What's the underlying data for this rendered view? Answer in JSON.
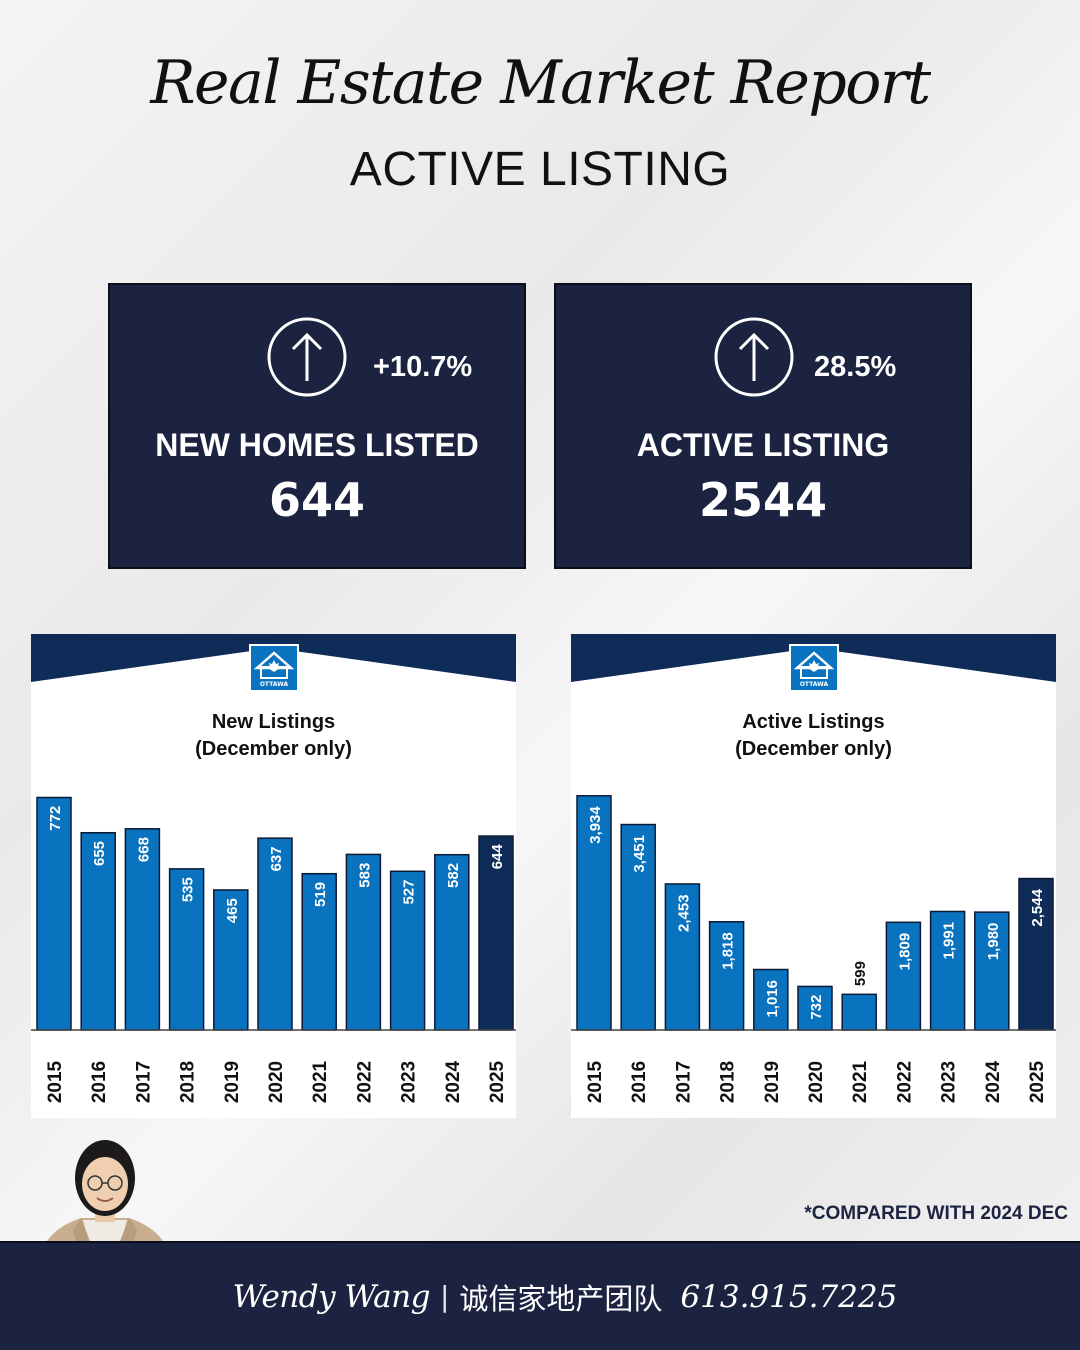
{
  "header": {
    "title": "Real Estate Market Report",
    "subtitle": "ACTIVE LISTING"
  },
  "stats": [
    {
      "change": "+10.7%",
      "label": "NEW HOMES LISTED",
      "value": "644",
      "trend_icon": "arrow-up-circle-icon"
    },
    {
      "change": "28.5%",
      "label": "ACTIVE LISTING",
      "value": "2544",
      "trend_icon": "arrow-up-circle-icon"
    }
  ],
  "colors": {
    "navy": "#1b2340",
    "bar": "#0a73bf",
    "bar_highlight": "#0f2b58",
    "banner": "#0f2b58"
  },
  "logo": {
    "icon": "ottawa-real-estate-board-logo-icon",
    "text": "OTTAWA"
  },
  "chart_data": [
    {
      "type": "bar",
      "title": "New Listings",
      "subtitle": "(December only)",
      "categories": [
        "2015",
        "2016",
        "2017",
        "2018",
        "2019",
        "2020",
        "2021",
        "2022",
        "2023",
        "2024",
        "2025"
      ],
      "values": [
        772,
        655,
        668,
        535,
        465,
        637,
        519,
        583,
        527,
        582,
        644
      ],
      "data_labels": [
        "772",
        "655",
        "668",
        "535",
        "465",
        "637",
        "519",
        "583",
        "527",
        "582",
        "644"
      ],
      "highlight_index": 10,
      "ylim": [
        0,
        850
      ]
    },
    {
      "type": "bar",
      "title": "Active Listings",
      "subtitle": "(December only)",
      "categories": [
        "2015",
        "2016",
        "2017",
        "2018",
        "2019",
        "2020",
        "2021",
        "2022",
        "2023",
        "2024",
        "2025"
      ],
      "values": [
        3934,
        3451,
        2453,
        1818,
        1016,
        732,
        599,
        1809,
        1991,
        1980,
        2544
      ],
      "data_labels": [
        "3,934",
        "3,451",
        "2,453",
        "1,818",
        "1,016",
        "732",
        "599",
        "1,809",
        "1,991",
        "1,980",
        "2,544"
      ],
      "highlight_index": 10,
      "ylim": [
        0,
        4300
      ]
    }
  ],
  "footnote": "*COMPARED WITH 2024 DEC",
  "footer": {
    "name": "Wendy Wang",
    "separator": "|",
    "team": "诚信家地产团队",
    "phone": "613.915.7225"
  }
}
